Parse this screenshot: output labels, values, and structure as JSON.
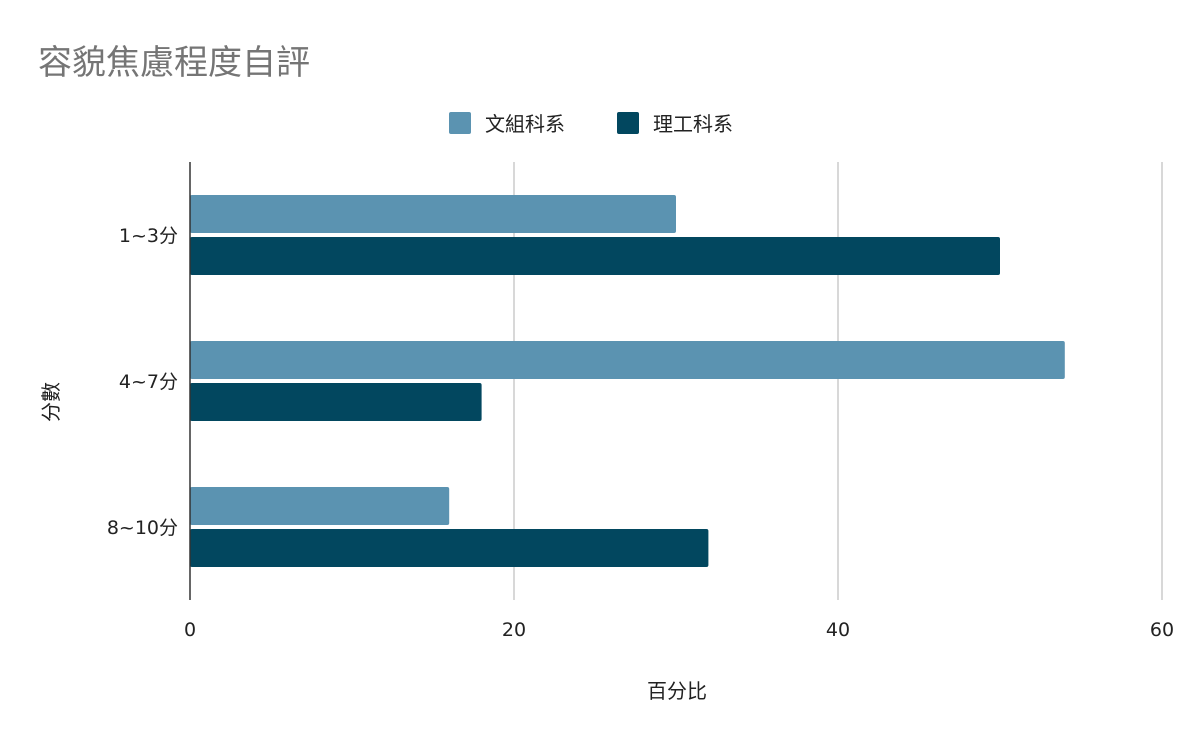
{
  "chart_data": {
    "type": "bar",
    "orientation": "horizontal",
    "title": "容貌焦慮程度自評",
    "xlabel": "百分比",
    "ylabel": "分數",
    "categories": [
      "1~3分",
      "4~7分",
      "8~10分"
    ],
    "series": [
      {
        "name": "文組科系",
        "values": [
          30,
          54,
          16
        ],
        "color": "#5b93b1"
      },
      {
        "name": "理工科系",
        "values": [
          50,
          18,
          32
        ],
        "color": "#02475f"
      }
    ],
    "xlim": [
      0,
      60
    ],
    "xticks": [
      "0",
      "20",
      "40",
      "60"
    ],
    "grid": true,
    "legend_position": "top-center"
  }
}
